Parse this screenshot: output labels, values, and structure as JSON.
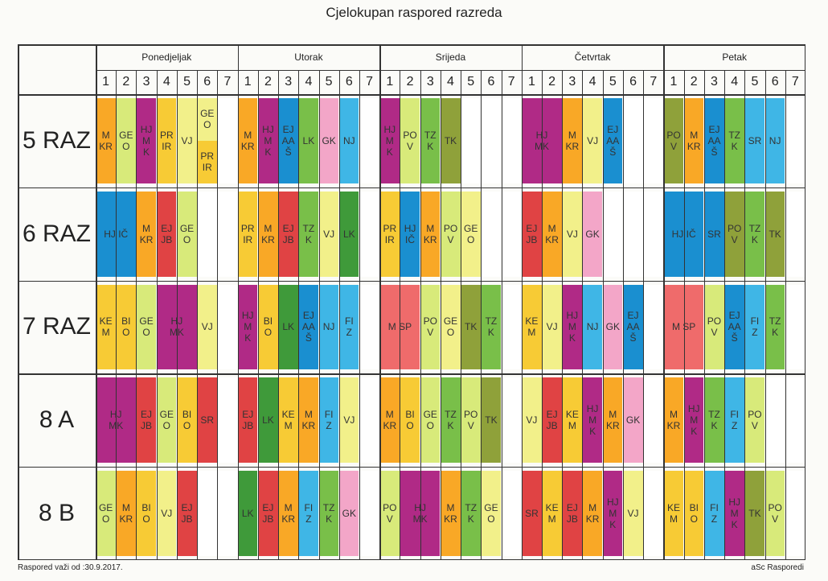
{
  "title": "Cjelokupan raspored razreda",
  "days": [
    "Ponedjeljak",
    "Utorak",
    "Srijeda",
    "Četvrtak",
    "Petak"
  ],
  "periods": [
    "1",
    "2",
    "3",
    "4",
    "5",
    "6",
    "7"
  ],
  "footer_left": "Raspored važi od :30.9.2017.",
  "footer_right": "aSc Rasporedi",
  "colors": {
    "orange": "#f9a826",
    "lightgreen": "#d8ea7a",
    "magenta": "#b02a86",
    "yellow": "#f7cb35",
    "lightyellow": "#f2f08a",
    "blue": "#1a8fd0",
    "lightblue": "#3fb6e6",
    "green": "#3f9a3a",
    "midgreen": "#79bf49",
    "olive": "#8fa13a",
    "pink": "#f3a6c8",
    "red": "#e04344",
    "salmon": "#ef6b6b",
    "white": "#ffffff"
  },
  "classes": [
    {
      "name": "5 RAZ",
      "days": [
        [
          {
            "t": "M\nKR",
            "c": "orange",
            "s": 1
          },
          {
            "t": "GE\nO",
            "c": "lightgreen",
            "s": 1
          },
          {
            "t": "HJ\nM\nK",
            "c": "magenta",
            "s": 1
          },
          {
            "t": "PR\nIR",
            "c": "yellow",
            "s": 1
          },
          {
            "t": "VJ",
            "c": "lightyellow",
            "s": 1
          },
          {
            "split": [
              {
                "t": "GE\nO",
                "c": "lightyellow"
              },
              {
                "t": "PR\nIR",
                "c": "yellow"
              }
            ],
            "s": 1
          },
          {
            "t": "",
            "c": "white",
            "s": 1
          }
        ],
        [
          {
            "t": "M\nKR",
            "c": "orange",
            "s": 1
          },
          {
            "t": "HJ\nM\nK",
            "c": "magenta",
            "s": 1
          },
          {
            "t": "EJ\nAA\nŠ",
            "c": "blue",
            "s": 1
          },
          {
            "t": "LK",
            "c": "midgreen",
            "s": 1
          },
          {
            "t": "GK",
            "c": "pink",
            "s": 1
          },
          {
            "t": "NJ",
            "c": "lightblue",
            "s": 1
          },
          {
            "t": "",
            "c": "white",
            "s": 1
          }
        ],
        [
          {
            "t": "HJ\nM\nK",
            "c": "magenta",
            "s": 1
          },
          {
            "t": "PO\nV",
            "c": "lightgreen",
            "s": 1
          },
          {
            "t": "TZ\nK",
            "c": "midgreen",
            "s": 1
          },
          {
            "t": "TK",
            "c": "olive",
            "s": 1
          },
          {
            "t": "",
            "c": "white",
            "s": 1
          },
          {
            "t": "",
            "c": "white",
            "s": 1
          },
          {
            "t": "",
            "c": "white",
            "s": 1
          }
        ],
        [
          {
            "t": "HJ\nMK",
            "c": "magenta",
            "s": 2
          },
          {
            "t": "M\nKR",
            "c": "orange",
            "s": 1
          },
          {
            "t": "VJ",
            "c": "lightyellow",
            "s": 1
          },
          {
            "t": "EJ\nAA\nŠ",
            "c": "blue",
            "s": 1
          },
          {
            "t": "",
            "c": "white",
            "s": 1
          },
          {
            "t": "",
            "c": "white",
            "s": 1
          }
        ],
        [
          {
            "t": "PO\nV",
            "c": "olive",
            "s": 1
          },
          {
            "t": "M\nKR",
            "c": "orange",
            "s": 1
          },
          {
            "t": "EJ\nAA\nŠ",
            "c": "blue",
            "s": 1
          },
          {
            "t": "TZ\nK",
            "c": "midgreen",
            "s": 1
          },
          {
            "t": "SR",
            "c": "lightblue",
            "s": 1
          },
          {
            "t": "NJ",
            "c": "lightblue",
            "s": 1
          },
          {
            "t": "",
            "c": "white",
            "s": 1
          }
        ]
      ]
    },
    {
      "name": "6 RAZ",
      "days": [
        [
          {
            "t": "HJ IČ",
            "c": "blue",
            "s": 2
          },
          {
            "t": "M\nKR",
            "c": "orange",
            "s": 1
          },
          {
            "t": "EJ\nJB",
            "c": "red",
            "s": 1
          },
          {
            "t": "GE\nO",
            "c": "lightgreen",
            "s": 1
          },
          {
            "t": "",
            "c": "white",
            "s": 1
          },
          {
            "t": "",
            "c": "white",
            "s": 1
          }
        ],
        [
          {
            "t": "PR\nIR",
            "c": "yellow",
            "s": 1
          },
          {
            "t": "M\nKR",
            "c": "orange",
            "s": 1
          },
          {
            "t": "EJ\nJB",
            "c": "red",
            "s": 1
          },
          {
            "t": "TZ\nK",
            "c": "midgreen",
            "s": 1
          },
          {
            "t": "VJ",
            "c": "lightyellow",
            "s": 1
          },
          {
            "t": "LK",
            "c": "green",
            "s": 1
          },
          {
            "t": "",
            "c": "white",
            "s": 1
          }
        ],
        [
          {
            "t": "PR\nIR",
            "c": "yellow",
            "s": 1
          },
          {
            "t": "HJ\nIČ",
            "c": "blue",
            "s": 1
          },
          {
            "t": "M\nKR",
            "c": "orange",
            "s": 1
          },
          {
            "t": "PO\nV",
            "c": "lightgreen",
            "s": 1
          },
          {
            "t": "GE\nO",
            "c": "lightyellow",
            "s": 1
          },
          {
            "t": "",
            "c": "white",
            "s": 1
          },
          {
            "t": "",
            "c": "white",
            "s": 1
          }
        ],
        [
          {
            "t": "EJ\nJB",
            "c": "red",
            "s": 1
          },
          {
            "t": "M\nKR",
            "c": "orange",
            "s": 1
          },
          {
            "t": "VJ",
            "c": "lightyellow",
            "s": 1
          },
          {
            "t": "GK",
            "c": "pink",
            "s": 1
          },
          {
            "t": "",
            "c": "white",
            "s": 1
          },
          {
            "t": "",
            "c": "white",
            "s": 1
          },
          {
            "t": "",
            "c": "white",
            "s": 1
          }
        ],
        [
          {
            "t": "HJ IČ",
            "c": "blue",
            "s": 2
          },
          {
            "t": "SR",
            "c": "blue",
            "s": 1
          },
          {
            "t": "PO\nV",
            "c": "olive",
            "s": 1
          },
          {
            "t": "TZ\nK",
            "c": "midgreen",
            "s": 1
          },
          {
            "t": "TK",
            "c": "olive",
            "s": 1
          },
          {
            "t": "",
            "c": "white",
            "s": 1
          }
        ]
      ]
    },
    {
      "name": "7 RAZ",
      "days": [
        [
          {
            "t": "KE\nM",
            "c": "yellow",
            "s": 1
          },
          {
            "t": "BI\nO",
            "c": "yellow",
            "s": 1
          },
          {
            "t": "GE\nO",
            "c": "lightgreen",
            "s": 1
          },
          {
            "t": "HJ\nMK",
            "c": "magenta",
            "s": 2
          },
          {
            "t": "VJ",
            "c": "lightyellow",
            "s": 1
          },
          {
            "t": "",
            "c": "white",
            "s": 1
          }
        ],
        [
          {
            "t": "HJ\nM\nK",
            "c": "magenta",
            "s": 1
          },
          {
            "t": "BI\nO",
            "c": "yellow",
            "s": 1
          },
          {
            "t": "LK",
            "c": "green",
            "s": 1
          },
          {
            "t": "EJ\nAA\nŠ",
            "c": "blue",
            "s": 1
          },
          {
            "t": "NJ",
            "c": "lightblue",
            "s": 1
          },
          {
            "t": "FI\nZ",
            "c": "lightblue",
            "s": 1
          },
          {
            "t": "",
            "c": "white",
            "s": 1
          }
        ],
        [
          {
            "t": "M SP",
            "c": "salmon",
            "s": 2
          },
          {
            "t": "PO\nV",
            "c": "lightgreen",
            "s": 1
          },
          {
            "t": "GE\nO",
            "c": "lightyellow",
            "s": 1
          },
          {
            "t": "TK",
            "c": "olive",
            "s": 1
          },
          {
            "t": "TZ\nK",
            "c": "midgreen",
            "s": 1
          },
          {
            "t": "",
            "c": "white",
            "s": 1
          }
        ],
        [
          {
            "t": "KE\nM",
            "c": "yellow",
            "s": 1
          },
          {
            "t": "VJ",
            "c": "lightyellow",
            "s": 1
          },
          {
            "t": "HJ\nM\nK",
            "c": "magenta",
            "s": 1
          },
          {
            "t": "NJ",
            "c": "lightblue",
            "s": 1
          },
          {
            "t": "GK",
            "c": "pink",
            "s": 1
          },
          {
            "t": "EJ\nAA\nŠ",
            "c": "blue",
            "s": 1
          },
          {
            "t": "",
            "c": "white",
            "s": 1
          }
        ],
        [
          {
            "t": "M SP",
            "c": "salmon",
            "s": 2
          },
          {
            "t": "PO\nV",
            "c": "lightgreen",
            "s": 1
          },
          {
            "t": "EJ\nAA\nŠ",
            "c": "blue",
            "s": 1
          },
          {
            "t": "FI\nZ",
            "c": "lightblue",
            "s": 1
          },
          {
            "t": "TZ\nK",
            "c": "midgreen",
            "s": 1
          },
          {
            "t": "",
            "c": "white",
            "s": 1
          }
        ]
      ]
    },
    {
      "name": "8 A",
      "days": [
        [
          {
            "t": "HJ\nMK",
            "c": "magenta",
            "s": 2
          },
          {
            "t": "EJ\nJB",
            "c": "red",
            "s": 1
          },
          {
            "t": "GE\nO",
            "c": "lightgreen",
            "s": 1
          },
          {
            "t": "BI\nO",
            "c": "yellow",
            "s": 1
          },
          {
            "t": "SR",
            "c": "red",
            "s": 1
          },
          {
            "t": "",
            "c": "white",
            "s": 1
          }
        ],
        [
          {
            "t": "EJ\nJB",
            "c": "red",
            "s": 1
          },
          {
            "t": "LK",
            "c": "green",
            "s": 1
          },
          {
            "t": "KE\nM",
            "c": "yellow",
            "s": 1
          },
          {
            "t": "M\nKR",
            "c": "orange",
            "s": 1
          },
          {
            "t": "FI\nZ",
            "c": "lightblue",
            "s": 1
          },
          {
            "t": "VJ",
            "c": "lightyellow",
            "s": 1
          },
          {
            "t": "",
            "c": "white",
            "s": 1
          }
        ],
        [
          {
            "t": "M\nKR",
            "c": "orange",
            "s": 1
          },
          {
            "t": "BI\nO",
            "c": "yellow",
            "s": 1
          },
          {
            "t": "GE\nO",
            "c": "lightgreen",
            "s": 1
          },
          {
            "t": "TZ\nK",
            "c": "midgreen",
            "s": 1
          },
          {
            "t": "PO\nV",
            "c": "lightgreen",
            "s": 1
          },
          {
            "t": "TK",
            "c": "olive",
            "s": 1
          },
          {
            "t": "",
            "c": "white",
            "s": 1
          }
        ],
        [
          {
            "t": "VJ",
            "c": "lightyellow",
            "s": 1
          },
          {
            "t": "EJ\nJB",
            "c": "red",
            "s": 1
          },
          {
            "t": "KE\nM",
            "c": "yellow",
            "s": 1
          },
          {
            "t": "HJ\nM\nK",
            "c": "magenta",
            "s": 1
          },
          {
            "t": "M\nKR",
            "c": "orange",
            "s": 1
          },
          {
            "t": "GK",
            "c": "pink",
            "s": 1
          },
          {
            "t": "",
            "c": "white",
            "s": 1
          }
        ],
        [
          {
            "t": "M\nKR",
            "c": "orange",
            "s": 1
          },
          {
            "t": "HJ\nM\nK",
            "c": "magenta",
            "s": 1
          },
          {
            "t": "TZ\nK",
            "c": "midgreen",
            "s": 1
          },
          {
            "t": "FI\nZ",
            "c": "lightblue",
            "s": 1
          },
          {
            "t": "PO\nV",
            "c": "lightgreen",
            "s": 1
          },
          {
            "t": "",
            "c": "white",
            "s": 1
          },
          {
            "t": "",
            "c": "white",
            "s": 1
          }
        ]
      ]
    },
    {
      "name": "8 B",
      "days": [
        [
          {
            "t": "GE\nO",
            "c": "lightgreen",
            "s": 1
          },
          {
            "t": "M\nKR",
            "c": "orange",
            "s": 1
          },
          {
            "t": "BI\nO",
            "c": "yellow",
            "s": 1
          },
          {
            "t": "VJ",
            "c": "lightyellow",
            "s": 1
          },
          {
            "t": "EJ\nJB",
            "c": "red",
            "s": 1
          },
          {
            "t": "",
            "c": "white",
            "s": 1
          },
          {
            "t": "",
            "c": "white",
            "s": 1
          }
        ],
        [
          {
            "t": "LK",
            "c": "green",
            "s": 1
          },
          {
            "t": "EJ\nJB",
            "c": "red",
            "s": 1
          },
          {
            "t": "M\nKR",
            "c": "orange",
            "s": 1
          },
          {
            "t": "FI\nZ",
            "c": "lightblue",
            "s": 1
          },
          {
            "t": "TZ\nK",
            "c": "midgreen",
            "s": 1
          },
          {
            "t": "GK",
            "c": "pink",
            "s": 1
          },
          {
            "t": "",
            "c": "white",
            "s": 1
          }
        ],
        [
          {
            "t": "PO\nV",
            "c": "lightgreen",
            "s": 1
          },
          {
            "t": "HJ\nMK",
            "c": "magenta",
            "s": 2
          },
          {
            "t": "M\nKR",
            "c": "orange",
            "s": 1
          },
          {
            "t": "TZ\nK",
            "c": "midgreen",
            "s": 1
          },
          {
            "t": "GE\nO",
            "c": "lightyellow",
            "s": 1
          },
          {
            "t": "",
            "c": "white",
            "s": 1
          }
        ],
        [
          {
            "t": "SR",
            "c": "red",
            "s": 1
          },
          {
            "t": "KE\nM",
            "c": "yellow",
            "s": 1
          },
          {
            "t": "EJ\nJB",
            "c": "red",
            "s": 1
          },
          {
            "t": "M\nKR",
            "c": "orange",
            "s": 1
          },
          {
            "t": "HJ\nM\nK",
            "c": "magenta",
            "s": 1
          },
          {
            "t": "VJ",
            "c": "lightyellow",
            "s": 1
          },
          {
            "t": "",
            "c": "white",
            "s": 1
          }
        ],
        [
          {
            "t": "KE\nM",
            "c": "yellow",
            "s": 1
          },
          {
            "t": "BI\nO",
            "c": "yellow",
            "s": 1
          },
          {
            "t": "FI\nZ",
            "c": "lightblue",
            "s": 1
          },
          {
            "t": "HJ\nM\nK",
            "c": "magenta",
            "s": 1
          },
          {
            "t": "TK",
            "c": "olive",
            "s": 1
          },
          {
            "t": "PO\nV",
            "c": "lightgreen",
            "s": 1
          },
          {
            "t": "",
            "c": "white",
            "s": 1
          }
        ]
      ]
    }
  ]
}
